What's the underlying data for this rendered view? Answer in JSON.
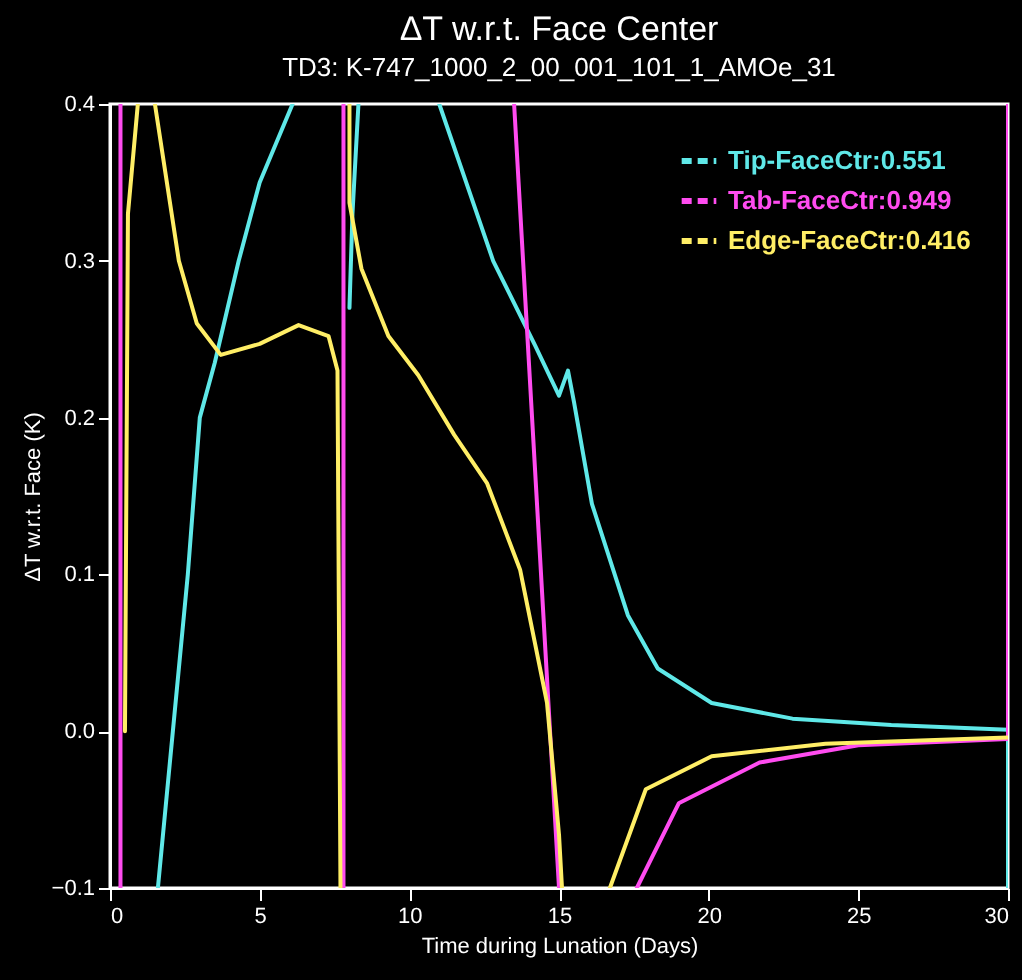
{
  "chart_data": {
    "type": "line",
    "title": "ΔT w.r.t. Face Center",
    "subtitle": "TD3: K-747_1000_2_00_001_101_1_AMOe_31",
    "xlabel": "Time during Lunation (Days)",
    "ylabel": "ΔT w.r.t. Face (K)",
    "xlim": [
      0,
      30
    ],
    "xticks": [
      0,
      5,
      10,
      15,
      20,
      25,
      30
    ],
    "ylim": [
      -0.1,
      0.4
    ],
    "yticks": [
      -0.1,
      {
        "value": 0,
        "label": "0.0"
      },
      0.1,
      0.2,
      0.3,
      0.4
    ],
    "grid": false,
    "legend": "top right",
    "line_style": "solid",
    "series": [
      {
        "name": "Tip-FaceCtr:0.551",
        "color": "#5fe8e8",
        "x": [
          1.6,
          2.1,
          2.6,
          3.0,
          3.5,
          4.3,
          5.0,
          6.1,
          null,
          8.0,
          8.1,
          8.3,
          null,
          11.0,
          12.8,
          14.2,
          15.0,
          15.3,
          15.5,
          16.1,
          17.3,
          18.3,
          20.1,
          22.8,
          26.1,
          30,
          30
        ],
        "values": [
          -0.1,
          0.0,
          0.1,
          0.2,
          0.235,
          0.3,
          0.35,
          0.4,
          null,
          0.27,
          0.33,
          0.4,
          null,
          0.4,
          0.3,
          0.246,
          0.214,
          0.23,
          0.21,
          0.145,
          0.074,
          0.04,
          0.018,
          0.008,
          0.004,
          0.001,
          -0.1
        ]
      },
      {
        "name": "Tab-FaceCtr:0.949",
        "color": "#ff4cf0",
        "x": [
          0.35,
          0.35,
          null,
          7.8,
          7.8,
          null,
          13.5,
          15.0,
          null,
          17.6,
          19.0,
          21.7,
          25.0,
          30,
          30
        ],
        "values": [
          -0.1,
          0.4,
          null,
          0.4,
          -0.1,
          null,
          0.4,
          -0.1,
          null,
          -0.1,
          -0.046,
          -0.02,
          -0.009,
          -0.005,
          0.4
        ]
      },
      {
        "name": "Edge-FaceCtr:0.416",
        "color": "#ffee66",
        "x": [
          0.5,
          0.6,
          0.93,
          null,
          1.5,
          2.3,
          2.9,
          3.7,
          5.0,
          6.3,
          7.3,
          7.6,
          7.7,
          null,
          8.0,
          8.0,
          8.4,
          9.3,
          10.3,
          11.5,
          12.6,
          13.7,
          14.6,
          15.0,
          15.1,
          null,
          16.7,
          17.9,
          20.1,
          23.9,
          30
        ],
        "values": [
          0.0,
          0.33,
          0.4,
          null,
          0.4,
          0.3,
          0.26,
          0.24,
          0.247,
          0.259,
          0.252,
          0.23,
          -0.1,
          null,
          0.4,
          0.337,
          0.295,
          0.252,
          0.227,
          0.189,
          0.158,
          0.103,
          0.018,
          -0.066,
          -0.1,
          null,
          -0.1,
          -0.037,
          -0.016,
          -0.008,
          -0.004
        ]
      }
    ]
  }
}
